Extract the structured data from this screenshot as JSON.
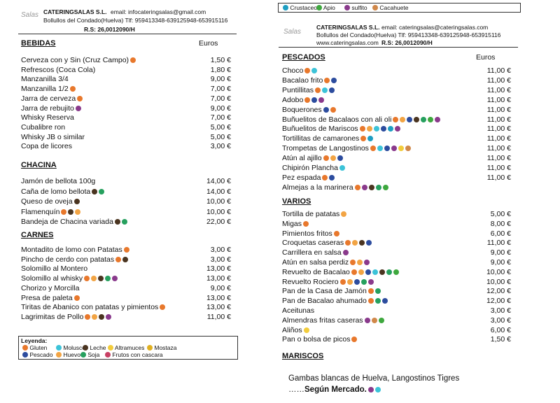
{
  "left": {
    "header": {
      "logo": "Salas",
      "company": "CATERINGSALAS S.L.",
      "email": "email: infocateringsalas@gmail.com",
      "address": "Bollullos del Condado(Huelva) Tlf: 959413348-639125948-653915116",
      "rs": "R.S: 26,0012090/H"
    },
    "sections": [
      {
        "title": "BEBIDAS",
        "euros": "Euros",
        "items": [
          [
            "Cerveza con y Sin (Cruz Campo)",
            "1,50 €"
          ],
          [
            "Refrescos (Coca Cola)",
            "1,80 €"
          ],
          [
            "Manzanilla 3/4",
            "9,00 €"
          ],
          [
            "Manzanilla 1/2",
            "7,00 €"
          ],
          [
            "Jarra de cerveza",
            "7,00 €"
          ],
          [
            "Jarra de rebujito",
            "9,00 €"
          ],
          [
            "Whisky Reserva",
            "7,00 €"
          ],
          [
            "Cubalibre ron",
            "5,00 €"
          ],
          [
            "Whisky JB o similar",
            "5,00 €"
          ],
          [
            "Copa de licores",
            "3,00 €"
          ]
        ]
      },
      {
        "title": "CHACINA",
        "items": [
          [
            "Jamón de bellota 100g",
            "14,00 €"
          ],
          [
            "Caña de lomo bellota",
            "14,00 €"
          ],
          [
            "Queso de oveja",
            "10,00 €"
          ],
          [
            "Flamenquín",
            "10,00 €"
          ],
          [
            "Bandeja de Chacina variada",
            "22,00 €"
          ]
        ]
      },
      {
        "title": "CARNES",
        "items": [
          [
            "Montadito de lomo con Patatas",
            "3,00 €"
          ],
          [
            "Pincho de cerdo con patatas",
            "3,00 €"
          ],
          [
            "Solomillo al Montero",
            "13,00 €"
          ],
          [
            "Solomillo al whisky",
            "13,00 €"
          ],
          [
            "Chorizo y Morcilla",
            "9,00 €"
          ],
          [
            "Presa de paleta",
            "13,00 €"
          ],
          [
            "Tiritas de Abanico con patatas y pimientos",
            "13,00 €"
          ],
          [
            "Lagrimitas de Pollo",
            "11,00 €"
          ]
        ]
      }
    ],
    "legend": {
      "title": "Leyenda:",
      "entries": [
        "Gluten",
        "Molusco",
        "Leche",
        "Altramuces",
        "Mostaza",
        "Pescado",
        "Huevo",
        "Soja",
        "Frutos con cascara"
      ]
    }
  },
  "right": {
    "legend": [
      "Crustaceo",
      "Apio",
      "sulfito",
      "Cacahuete"
    ],
    "header": {
      "logo": "Salas",
      "company": "CATERINGSALAS S.L.",
      "email": "email: cateringsalas@cateringsalas.com",
      "address": "Bollullos del Condado(Huelva) Tlf: 959413348-639125948-653915116",
      "web": "www.cateringsalas.com",
      "rs": "R.S: 26,0012090/H"
    },
    "sections": [
      {
        "title": "PESCADOS",
        "euros": "Euros",
        "items": [
          [
            "Choco",
            "11,00 €"
          ],
          [
            "Bacalao frito",
            "11,00 €"
          ],
          [
            "Puntillitas",
            "11,00 €"
          ],
          [
            "Adobo",
            "11,00 €"
          ],
          [
            "Boquerones",
            "11,00 €"
          ],
          [
            "Buñuelitos de Bacalaos con ali oli",
            "11,00 €"
          ],
          [
            "Buñuelitos de Mariscos",
            "11,00 €"
          ],
          [
            "Tortillitas de camarones",
            "11,00 €"
          ],
          [
            "Trompetas de Langostinos",
            "11,00 €"
          ],
          [
            "Atún al ajillo",
            "11,00 €"
          ],
          [
            "Chipirón Plancha",
            "11,00 €"
          ],
          [
            "Pez espada",
            "11,00 €"
          ],
          [
            "Almejas a la marinera"
          ]
        ]
      },
      {
        "title": "VARIOS",
        "items": [
          [
            "Tortilla de patatas",
            "5,00 €"
          ],
          [
            "Migas",
            "8,00 €"
          ],
          [
            "Pimientos fritos",
            "6,00 €"
          ],
          [
            "Croquetas caseras",
            "11,00 €"
          ],
          [
            "Carrillera en salsa",
            "9,00 €"
          ],
          [
            "Atún en salsa perdiz",
            "9,00 €"
          ],
          [
            "Revuelto de Bacalao",
            "10,00 €"
          ],
          [
            "Revuelto Rociero",
            "10,00 €"
          ],
          [
            "Pan de la Casa de Jamón",
            "12,00 €"
          ],
          [
            "Pan de Bacalao ahumado",
            "12,00 €"
          ],
          [
            "Aceitunas",
            "3,00 €"
          ],
          [
            "Almendras fritas caseras",
            "3,00 €"
          ],
          [
            "Aliños",
            "6,00 €"
          ],
          [
            "Pan o bolsa de picos",
            "1,50 €"
          ]
        ]
      },
      {
        "title": "MARISCOS",
        "items": []
      }
    ],
    "mariscos": {
      "line1": "Gambas blancas de Huelva, Langostinos Tigres",
      "dots": "……",
      "market": "Según Mercado."
    }
  }
}
